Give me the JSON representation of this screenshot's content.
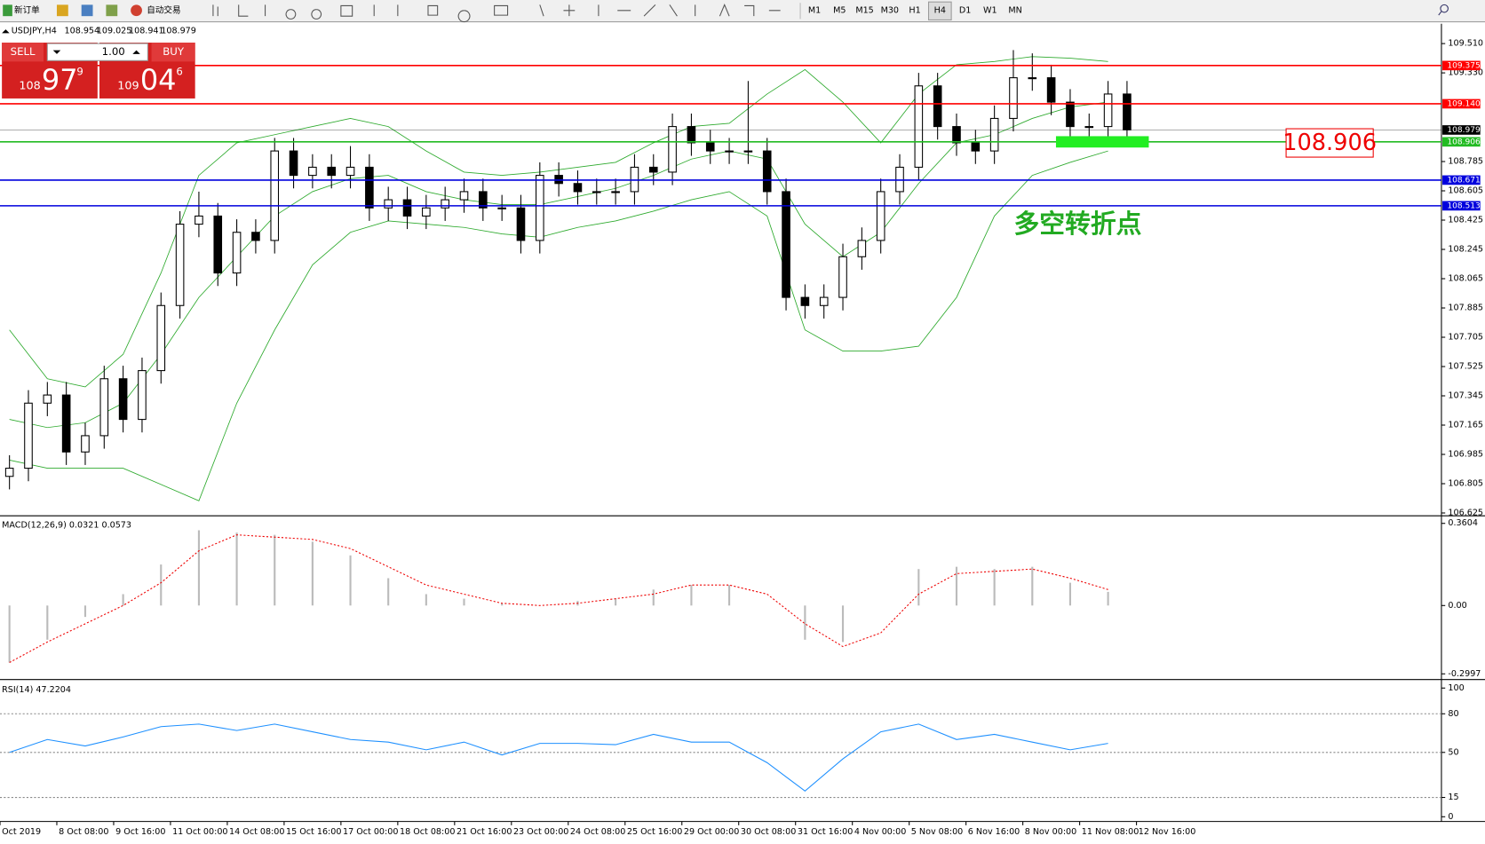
{
  "toolbar": {
    "new_order": "新订单",
    "auto_trading": "自动交易",
    "timeframes": [
      "M1",
      "M5",
      "M15",
      "M30",
      "H1",
      "H4",
      "D1",
      "W1",
      "MN"
    ]
  },
  "chart": {
    "symbol": "USDJPY,H4",
    "ohlc": [
      108.954,
      109.025,
      108.941,
      108.979
    ],
    "order_panel": {
      "sell": "SELL",
      "buy": "BUY",
      "lots": "1.00",
      "sell_big": "108",
      "sell_pips": "97",
      "sell_frac": "9",
      "buy_big": "109",
      "buy_pips": "04",
      "buy_frac": "6"
    },
    "ylim": [
      106.625,
      109.51
    ],
    "yticks": [
      {
        "value": 109.51,
        "label": "109.510"
      },
      {
        "value": 109.33,
        "label": "109.330"
      },
      108.785,
      108.605,
      108.425,
      108.245,
      {
        "value": 108.065,
        "label": "108.065"
      },
      107.885,
      107.705,
      107.525,
      107.345,
      107.165,
      106.985,
      106.805,
      106.625
    ],
    "candles": {
      "open": [
        106.85,
        106.9,
        107.3,
        107.35,
        107.0,
        107.1,
        107.45,
        107.2,
        107.5,
        107.9,
        108.4,
        108.45,
        108.1,
        108.35,
        108.3,
        108.85,
        108.7,
        108.75,
        108.7,
        108.75,
        108.5,
        108.55,
        108.45,
        108.5,
        108.55,
        108.6,
        108.5,
        108.5,
        108.3,
        108.7,
        108.65,
        108.6,
        108.6,
        108.6,
        108.75,
        108.72,
        109.0,
        108.9,
        108.85,
        108.85,
        108.85,
        108.6,
        107.95,
        107.9,
        107.95,
        108.2,
        108.3,
        108.6,
        108.75,
        109.25,
        109.0,
        108.9,
        108.85,
        109.05,
        109.3,
        109.3,
        109.15,
        109.0,
        109.0,
        109.2
      ],
      "high": [
        106.98,
        107.38,
        107.43,
        107.43,
        107.18,
        107.53,
        107.53,
        107.58,
        107.98,
        108.48,
        108.6,
        108.53,
        108.43,
        108.43,
        108.93,
        108.93,
        108.83,
        108.83,
        108.88,
        108.83,
        108.63,
        108.63,
        108.58,
        108.63,
        108.68,
        108.68,
        108.58,
        108.58,
        108.78,
        108.78,
        108.73,
        108.68,
        108.68,
        108.83,
        108.83,
        109.08,
        109.08,
        108.98,
        108.93,
        109.28,
        108.93,
        108.68,
        108.03,
        108.03,
        108.28,
        108.38,
        108.68,
        108.83,
        109.33,
        109.33,
        109.08,
        108.98,
        109.13,
        109.47,
        109.45,
        109.38,
        109.23,
        109.08,
        109.28,
        109.28
      ],
      "low": [
        106.77,
        106.82,
        107.22,
        106.92,
        106.92,
        107.02,
        107.12,
        107.12,
        107.42,
        107.82,
        108.32,
        108.02,
        108.02,
        108.22,
        108.22,
        108.62,
        108.62,
        108.62,
        108.62,
        108.42,
        108.42,
        108.37,
        108.37,
        108.42,
        108.47,
        108.42,
        108.42,
        108.22,
        108.22,
        108.57,
        108.52,
        108.52,
        108.52,
        108.52,
        108.64,
        108.64,
        108.82,
        108.77,
        108.77,
        108.77,
        108.52,
        107.87,
        107.82,
        107.82,
        107.87,
        108.12,
        108.22,
        108.52,
        108.67,
        108.92,
        108.82,
        108.77,
        108.77,
        108.97,
        109.22,
        109.07,
        108.92,
        108.92,
        108.92,
        108.9
      ],
      "close": [
        106.9,
        107.3,
        107.35,
        107.0,
        107.1,
        107.45,
        107.2,
        107.5,
        107.9,
        108.4,
        108.45,
        108.1,
        108.35,
        108.3,
        108.85,
        108.7,
        108.75,
        108.7,
        108.75,
        108.5,
        108.55,
        108.45,
        108.5,
        108.55,
        108.6,
        108.5,
        108.5,
        108.3,
        108.7,
        108.65,
        108.6,
        108.6,
        108.6,
        108.75,
        108.72,
        109.0,
        108.9,
        108.85,
        108.85,
        108.85,
        108.6,
        107.95,
        107.9,
        107.95,
        108.2,
        108.3,
        108.6,
        108.75,
        109.25,
        109.0,
        108.9,
        108.85,
        109.05,
        109.3,
        109.3,
        109.15,
        109.0,
        109.0,
        109.2,
        108.98
      ]
    },
    "bands": {
      "upper": [
        107.75,
        107.45,
        107.4,
        107.6,
        108.1,
        108.7,
        108.9,
        108.95,
        109.0,
        109.05,
        109.0,
        108.85,
        108.72,
        108.7,
        108.72,
        108.75,
        108.78,
        108.9,
        109.0,
        109.02,
        109.2,
        109.35,
        109.15,
        108.9,
        109.2,
        109.38,
        109.4,
        109.43,
        109.42,
        109.4
      ],
      "middle": [
        107.2,
        107.15,
        107.18,
        107.3,
        107.6,
        107.95,
        108.2,
        108.45,
        108.6,
        108.68,
        108.7,
        108.6,
        108.55,
        108.52,
        108.52,
        108.57,
        108.62,
        108.7,
        108.8,
        108.85,
        108.8,
        108.4,
        108.2,
        108.35,
        108.65,
        108.9,
        108.95,
        109.05,
        109.12,
        109.15
      ],
      "lower": [
        106.95,
        106.9,
        106.9,
        106.9,
        106.8,
        106.7,
        107.3,
        107.75,
        108.15,
        108.35,
        108.42,
        108.4,
        108.38,
        108.34,
        108.32,
        108.38,
        108.42,
        108.48,
        108.55,
        108.6,
        108.45,
        107.75,
        107.62,
        107.62,
        107.65,
        107.95,
        108.45,
        108.7,
        108.78,
        108.85
      ],
      "color": "#2eaa2e"
    },
    "levels": [
      {
        "value": 109.375,
        "label": "109.375",
        "color": "#ff0000"
      },
      {
        "value": 109.14,
        "label": "109.140",
        "color": "#ff0000"
      },
      {
        "value": 108.906,
        "label": "108.906",
        "color": "#22bb22"
      },
      {
        "value": 108.671,
        "label": "108.671",
        "color": "#0000dd"
      },
      {
        "value": 108.513,
        "label": "108.513",
        "color": "#0000dd"
      }
    ],
    "current": {
      "value": 108.979,
      "label": "108.979"
    },
    "highlight_price": "108.906",
    "annotation": "多空转折点"
  },
  "macd": {
    "label": "MACD(12,26,9) 0.0321 0.0573",
    "ylim": [
      -0.2997,
      0.3604
    ],
    "yticks": [
      0.3604,
      {
        "value": 0,
        "label": "0.00"
      },
      -0.2997
    ],
    "histogram": [
      -0.25,
      -0.15,
      -0.05,
      0.05,
      0.18,
      0.33,
      0.32,
      0.31,
      0.28,
      0.22,
      0.12,
      0.05,
      0.03,
      0.01,
      0.0,
      0.02,
      0.03,
      0.07,
      0.09,
      0.09,
      0.0,
      -0.15,
      -0.16,
      0.0,
      0.16,
      0.17,
      0.16,
      0.17,
      0.1,
      0.06
    ],
    "signal": [
      -0.25,
      -0.16,
      -0.08,
      0.0,
      0.1,
      0.24,
      0.31,
      0.3,
      0.29,
      0.25,
      0.17,
      0.09,
      0.05,
      0.01,
      0.0,
      0.01,
      0.03,
      0.05,
      0.09,
      0.09,
      0.05,
      -0.08,
      -0.18,
      -0.12,
      0.05,
      0.14,
      0.15,
      0.16,
      0.12,
      0.07
    ]
  },
  "rsi": {
    "label": "RSI(14) 47.2204",
    "ylim": [
      0,
      100
    ],
    "yticks": [
      100,
      80,
      50,
      15,
      0
    ],
    "levels": [
      80,
      50,
      15
    ],
    "values": [
      50,
      60,
      55,
      62,
      70,
      72,
      67,
      72,
      66,
      60,
      58,
      52,
      58,
      48,
      57,
      57,
      56,
      64,
      58,
      58,
      42,
      20,
      45,
      66,
      72,
      60,
      64,
      58,
      52,
      57
    ]
  },
  "time_axis": [
    "Oct 2019",
    "8 Oct 08:00",
    "9 Oct 16:00",
    "11 Oct 00:00",
    "14 Oct 08:00",
    "15 Oct 16:00",
    "17 Oct 00:00",
    "18 Oct 08:00",
    "21 Oct 16:00",
    "23 Oct 00:00",
    "24 Oct 08:00",
    "25 Oct 16:00",
    "29 Oct 00:00",
    "30 Oct 08:00",
    "31 Oct 16:00",
    "4 Nov 00:00",
    "5 Nov 08:00",
    "6 Nov 16:00",
    "8 Nov 00:00",
    "11 Nov 08:00",
    "12 Nov 16:00"
  ]
}
